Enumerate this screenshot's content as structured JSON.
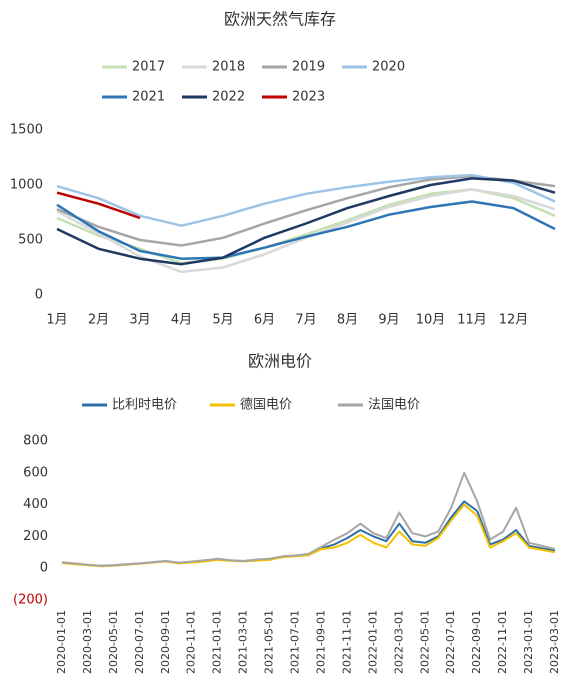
{
  "chart_data": [
    {
      "type": "line",
      "title": "欧洲天然气库存",
      "x": [
        1,
        2,
        3,
        4,
        5,
        6,
        7,
        8,
        9,
        10,
        11,
        12,
        13
      ],
      "xlim": [
        1,
        13
      ],
      "xticks": [
        {
          "value": 1,
          "label": "1月"
        },
        {
          "value": 2,
          "label": "2月"
        },
        {
          "value": 3,
          "label": "3月"
        },
        {
          "value": 4,
          "label": "4月"
        },
        {
          "value": 5,
          "label": "5月"
        },
        {
          "value": 6,
          "label": "6月"
        },
        {
          "value": 7,
          "label": "7月"
        },
        {
          "value": 8,
          "label": "8月"
        },
        {
          "value": 9,
          "label": "9月"
        },
        {
          "value": 10,
          "label": "10月"
        },
        {
          "value": 11,
          "label": "11月"
        },
        {
          "value": 12,
          "label": "12月"
        }
      ],
      "ylim": [
        0,
        1500
      ],
      "yticks": [
        0,
        500,
        1000,
        1500
      ],
      "series": [
        {
          "name": "2017",
          "color": "#c5e0b4",
          "values": [
            700,
            540,
            420,
            290,
            330,
            430,
            550,
            680,
            820,
            920,
            960,
            880,
            720
          ]
        },
        {
          "name": "2018",
          "color": "#d9d9d9",
          "values": [
            760,
            560,
            350,
            210,
            250,
            370,
            520,
            660,
            800,
            900,
            960,
            900,
            780
          ]
        },
        {
          "name": "2019",
          "color": "#a6a6a6",
          "values": [
            780,
            620,
            500,
            450,
            520,
            650,
            770,
            880,
            980,
            1050,
            1080,
            1040,
            990
          ]
        },
        {
          "name": "2020",
          "color": "#9dc3e6",
          "values": [
            990,
            880,
            720,
            630,
            720,
            830,
            920,
            980,
            1030,
            1070,
            1090,
            1020,
            850
          ]
        },
        {
          "name": "2021",
          "color": "#2e75b6",
          "values": [
            820,
            580,
            400,
            330,
            340,
            430,
            530,
            620,
            730,
            800,
            850,
            790,
            600
          ]
        },
        {
          "name": "2022",
          "color": "#1f3864",
          "values": [
            600,
            420,
            330,
            280,
            340,
            520,
            650,
            790,
            900,
            1000,
            1060,
            1040,
            930
          ]
        },
        {
          "name": "2023",
          "color": "#c00000",
          "values": [
            930,
            830,
            700,
            null,
            null,
            null,
            null,
            null,
            null,
            null,
            null,
            null,
            null
          ]
        }
      ]
    },
    {
      "type": "line",
      "title": "欧洲电价",
      "categories": [
        "2020-01-01",
        null,
        "2020-03-01",
        null,
        "2020-05-01",
        null,
        "2020-07-01",
        null,
        "2020-09-01",
        null,
        "2020-11-01",
        null,
        "2021-01-01",
        null,
        "2021-03-01",
        null,
        "2021-05-01",
        null,
        "2021-07-01",
        null,
        "2021-09-01",
        null,
        "2021-11-01",
        null,
        "2022-01-01",
        null,
        "2022-03-01",
        null,
        "2022-05-01",
        null,
        "2022-07-01",
        null,
        "2022-09-01",
        null,
        "2022-11-01",
        null,
        "2023-01-01",
        null,
        "2023-03-01"
      ],
      "ylim": [
        -200,
        800
      ],
      "yticks": [
        {
          "value": -200,
          "label": "(200)"
        },
        0,
        200,
        400,
        600,
        800
      ],
      "series": [
        {
          "name": "比利时电价",
          "color": "#2e6fa7",
          "values": [
            35,
            28,
            20,
            15,
            18,
            25,
            30,
            38,
            45,
            32,
            38,
            45,
            55,
            48,
            45,
            50,
            55,
            72,
            78,
            88,
            125,
            150,
            190,
            240,
            200,
            170,
            280,
            170,
            160,
            200,
            320,
            420,
            360,
            150,
            180,
            240,
            140,
            125,
            110
          ]
        },
        {
          "name": "德国电价",
          "color": "#f5c000",
          "values": [
            33,
            25,
            18,
            12,
            15,
            22,
            28,
            35,
            42,
            30,
            36,
            42,
            52,
            46,
            43,
            48,
            52,
            70,
            75,
            82,
            120,
            130,
            160,
            210,
            160,
            130,
            230,
            150,
            140,
            190,
            300,
            400,
            330,
            130,
            170,
            220,
            130,
            115,
            100
          ]
        },
        {
          "name": "法国电价",
          "color": "#a6a6a6",
          "values": [
            38,
            30,
            22,
            15,
            18,
            25,
            30,
            38,
            45,
            35,
            42,
            50,
            60,
            50,
            45,
            55,
            60,
            75,
            80,
            90,
            135,
            180,
            220,
            280,
            220,
            190,
            350,
            220,
            200,
            230,
            380,
            600,
            420,
            180,
            230,
            380,
            160,
            140,
            120
          ]
        }
      ]
    }
  ]
}
